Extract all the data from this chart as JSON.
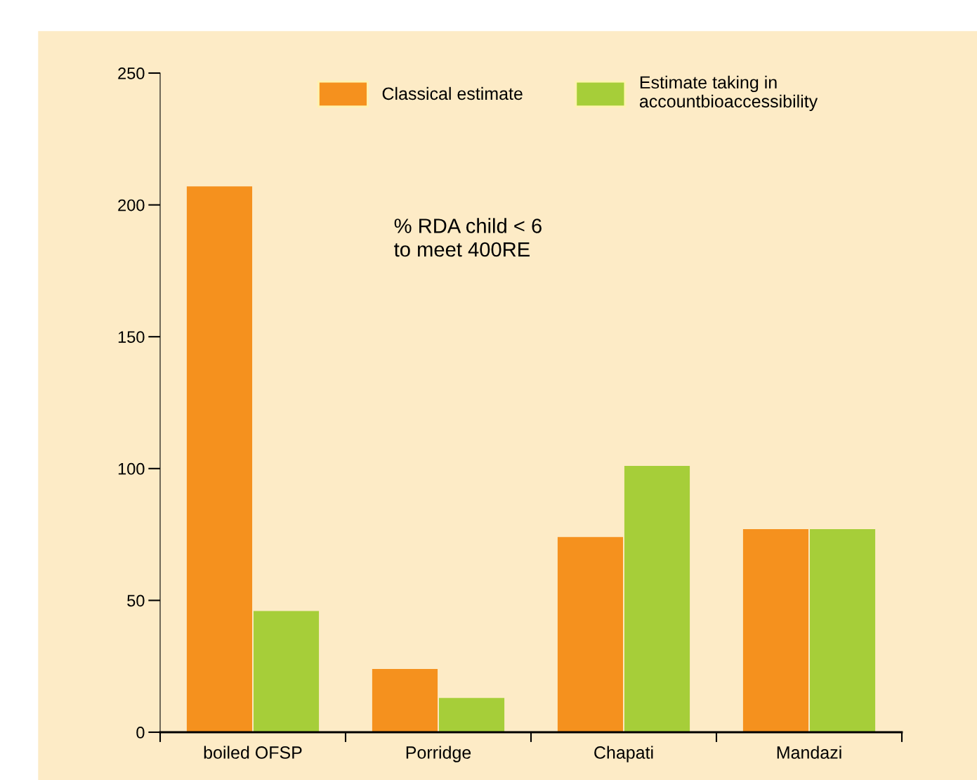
{
  "chart_data": {
    "type": "bar",
    "categories": [
      "boiled OFSP",
      "Porridge",
      "Chapati",
      "Mandazi"
    ],
    "series": [
      {
        "name": "Classical estimate",
        "color": "#f5911e",
        "values": [
          207,
          24,
          74,
          77
        ]
      },
      {
        "name": "Estimate taking in\naccountbioaccessibility",
        "color": "#a6ce39",
        "values": [
          46,
          13,
          101,
          77
        ]
      }
    ],
    "ylim": [
      0,
      250
    ],
    "yticks": [
      0,
      50,
      100,
      150,
      200,
      250
    ],
    "grid": false,
    "legend": "top",
    "annotations": [
      "% RDA child < 6\nto meet 400RE"
    ]
  }
}
